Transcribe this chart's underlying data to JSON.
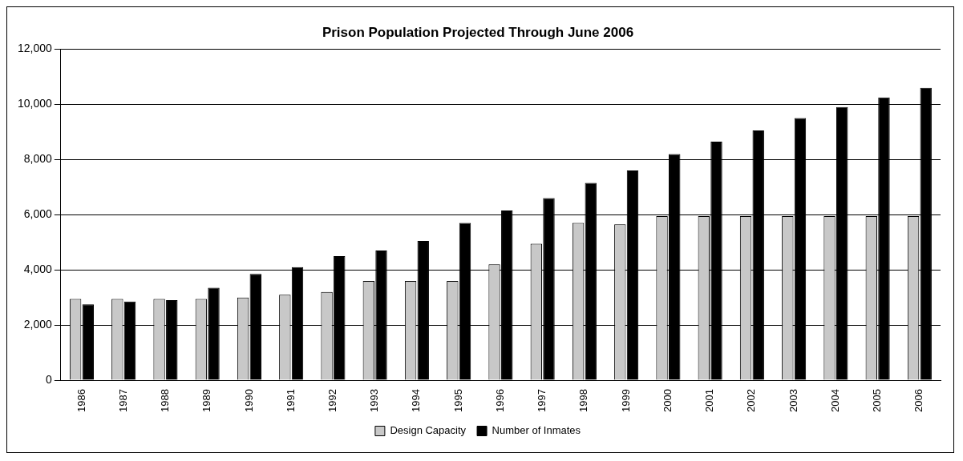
{
  "chart_data": {
    "type": "bar",
    "title": "Prison Population Projected Through June 2006",
    "categories": [
      "1986",
      "1987",
      "1988",
      "1989",
      "1990",
      "1991",
      "1992",
      "1993",
      "1994",
      "1995",
      "1996",
      "1997",
      "1998",
      "1999",
      "2000",
      "2001",
      "2002",
      "2003",
      "2004",
      "2005",
      "2006"
    ],
    "series": [
      {
        "name": "Design Capacity",
        "color": "#c8c8c8",
        "values": [
          2950,
          2950,
          2950,
          2950,
          3000,
          3100,
          3200,
          3600,
          3600,
          3600,
          4200,
          4950,
          5700,
          5650,
          5950,
          5950,
          5950,
          5950,
          5950,
          5950,
          5950
        ]
      },
      {
        "name": "Number of Inmates",
        "color": "#000000",
        "values": [
          2750,
          2850,
          2900,
          3350,
          3850,
          4100,
          4500,
          4700,
          5050,
          5700,
          6150,
          6600,
          7150,
          7600,
          8200,
          8650,
          9050,
          9500,
          9900,
          10250,
          10600
        ]
      }
    ],
    "ylim": [
      0,
      12000
    ],
    "yticks": [
      {
        "value": 0,
        "label": "0"
      },
      {
        "value": 2000,
        "label": "2,000"
      },
      {
        "value": 4000,
        "label": "4,000"
      },
      {
        "value": 6000,
        "label": "6,000"
      },
      {
        "value": 8000,
        "label": "8,000"
      },
      {
        "value": 10000,
        "label": "10,000"
      },
      {
        "value": 12000,
        "label": "12,000"
      }
    ],
    "grid": "y",
    "legend": "bottom"
  }
}
